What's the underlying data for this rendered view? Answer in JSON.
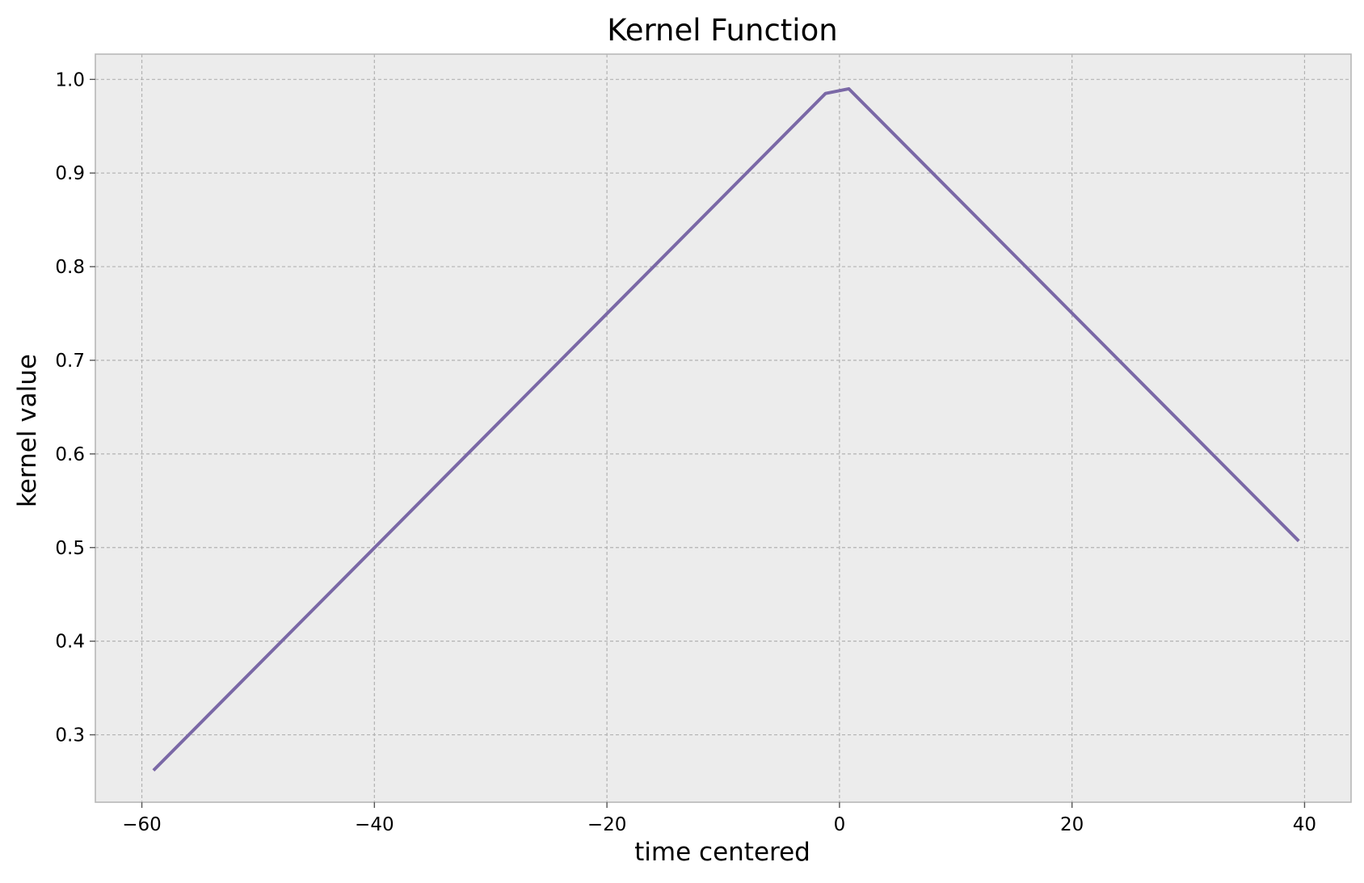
{
  "chart_data": {
    "type": "line",
    "title": "Kernel Function",
    "xlabel": "time centered",
    "ylabel": "kernel value",
    "xlim": [
      -64,
      44
    ],
    "ylim": [
      0.228,
      1.027
    ],
    "xticks": [
      -60,
      -40,
      -20,
      0,
      20,
      40
    ],
    "xtick_labels": [
      "−60",
      "−40",
      "−20",
      "0",
      "20",
      "40"
    ],
    "yticks": [
      0.3,
      0.4,
      0.5,
      0.6,
      0.7,
      0.8,
      0.9,
      1.0
    ],
    "ytick_labels": [
      "0.3",
      "0.4",
      "0.5",
      "0.6",
      "0.7",
      "0.8",
      "0.9",
      "1.0"
    ],
    "grid": true,
    "legend": "none",
    "colors": {
      "background": "#ececec",
      "grid": "#b2b2b2",
      "spine": "#b8b8b8",
      "line": "#7a68a6"
    },
    "series": [
      {
        "x": [
          -59,
          -1.2,
          0.8,
          39.5
        ],
        "y": [
          0.262,
          0.985,
          0.99,
          0.507
        ]
      }
    ]
  }
}
